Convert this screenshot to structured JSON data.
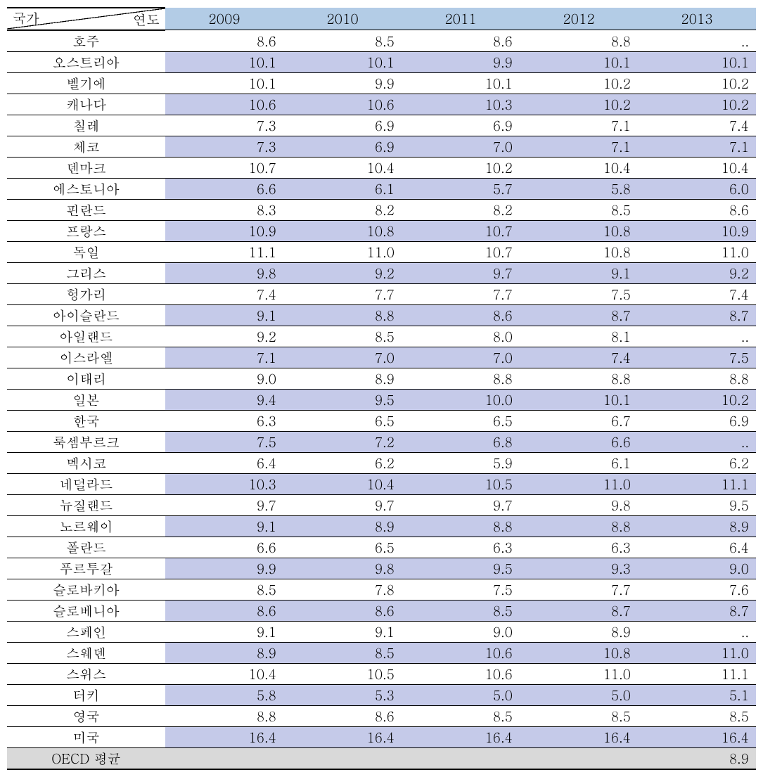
{
  "header": {
    "corner_top": "연도",
    "corner_bottom": "국가",
    "years": [
      "2009",
      "2010",
      "2011",
      "2012",
      "2013"
    ]
  },
  "colors": {
    "header_bg": "#b3cce6",
    "alt_row_bg": "#c5cae9",
    "avg_row_bg": "#d9d9d9",
    "border": "#000000",
    "background": "#ffffff"
  },
  "rows": [
    {
      "country": "호주",
      "values": [
        "8.6",
        "8.5",
        "8.6",
        "8.8",
        ".."
      ],
      "alt": false
    },
    {
      "country": "오스트리아",
      "values": [
        "10.1",
        "10.1",
        "9.9",
        "10.1",
        "10.1"
      ],
      "alt": true
    },
    {
      "country": "벨기에",
      "values": [
        "10.1",
        "9.9",
        "10.1",
        "10.2",
        "10.2"
      ],
      "alt": false
    },
    {
      "country": "캐나다",
      "values": [
        "10.6",
        "10.6",
        "10.3",
        "10.2",
        "10.2"
      ],
      "alt": true
    },
    {
      "country": "칠레",
      "values": [
        "7.3",
        "6.9",
        "6.9",
        "7.1",
        "7.4"
      ],
      "alt": false
    },
    {
      "country": "체코",
      "values": [
        "7.3",
        "6.9",
        "7.0",
        "7.1",
        "7.1"
      ],
      "alt": true
    },
    {
      "country": "덴마크",
      "values": [
        "10.7",
        "10.4",
        "10.2",
        "10.4",
        "10.4"
      ],
      "alt": false
    },
    {
      "country": "에스토니아",
      "values": [
        "6.6",
        "6.1",
        "5.7",
        "5.8",
        "6.0"
      ],
      "alt": true
    },
    {
      "country": "핀란드",
      "values": [
        "8.3",
        "8.2",
        "8.2",
        "8.5",
        "8.6"
      ],
      "alt": false
    },
    {
      "country": "프랑스",
      "values": [
        "10.9",
        "10.8",
        "10.7",
        "10.8",
        "10.9"
      ],
      "alt": true
    },
    {
      "country": "독일",
      "values": [
        "11.1",
        "11.0",
        "10.7",
        "10.8",
        "11.0"
      ],
      "alt": false
    },
    {
      "country": "그리스",
      "values": [
        "9.8",
        "9.2",
        "9.7",
        "9.1",
        "9.2"
      ],
      "alt": true
    },
    {
      "country": "헝가리",
      "values": [
        "7.4",
        "7.7",
        "7.7",
        "7.5",
        "7.4"
      ],
      "alt": false
    },
    {
      "country": "아이슬란드",
      "values": [
        "9.1",
        "8.8",
        "8.6",
        "8.7",
        "8.7"
      ],
      "alt": true
    },
    {
      "country": "아일랜드",
      "values": [
        "9.2",
        "8.5",
        "8.0",
        "8.1",
        ".."
      ],
      "alt": false
    },
    {
      "country": "이스라엘",
      "values": [
        "7.1",
        "7.0",
        "7.0",
        "7.4",
        "7.5"
      ],
      "alt": true
    },
    {
      "country": "이태리",
      "values": [
        "9.0",
        "8.9",
        "8.8",
        "8.8",
        "8.8"
      ],
      "alt": false
    },
    {
      "country": "일본",
      "values": [
        "9.4",
        "9.5",
        "10.0",
        "10.1",
        "10.2"
      ],
      "alt": true
    },
    {
      "country": "한국",
      "values": [
        "6.3",
        "6.5",
        "6.5",
        "6.7",
        "6.9"
      ],
      "alt": false
    },
    {
      "country": "룩셈부르크",
      "values": [
        "7.5",
        "7.2",
        "6.8",
        "6.6",
        ".."
      ],
      "alt": true
    },
    {
      "country": "멕시코",
      "values": [
        "6.4",
        "6.2",
        "5.9",
        "6.1",
        "6.2"
      ],
      "alt": false
    },
    {
      "country": "네덜라드",
      "values": [
        "10.3",
        "10.4",
        "10.5",
        "11.0",
        "11.1"
      ],
      "alt": true
    },
    {
      "country": "뉴질랜드",
      "values": [
        "9.7",
        "9.7",
        "9.7",
        "9.8",
        "9.5"
      ],
      "alt": false
    },
    {
      "country": "노르웨이",
      "values": [
        "9.1",
        "8.9",
        "8.8",
        "8.8",
        "8.9"
      ],
      "alt": true
    },
    {
      "country": "폴란드",
      "values": [
        "6.6",
        "6.5",
        "6.3",
        "6.3",
        "6.4"
      ],
      "alt": false
    },
    {
      "country": "푸르투갈",
      "values": [
        "9.9",
        "9.8",
        "9.5",
        "9.3",
        "9.0"
      ],
      "alt": true
    },
    {
      "country": "슬로바키아",
      "values": [
        "8.5",
        "7.8",
        "7.5",
        "7.7",
        "7.6"
      ],
      "alt": false
    },
    {
      "country": "슬로베니아",
      "values": [
        "8.6",
        "8.6",
        "8.5",
        "8.7",
        "8.7"
      ],
      "alt": true
    },
    {
      "country": "스페인",
      "values": [
        "9.1",
        "9.1",
        "9.0",
        "8.9",
        ".."
      ],
      "alt": false
    },
    {
      "country": "스웨덴",
      "values": [
        "8.9",
        "8.5",
        "10.6",
        "10.8",
        "11.0"
      ],
      "alt": true
    },
    {
      "country": "스위스",
      "values": [
        "10.4",
        "10.5",
        "10.6",
        "11.0",
        "11.1"
      ],
      "alt": false
    },
    {
      "country": "터키",
      "values": [
        "5.8",
        "5.3",
        "5.0",
        "5.0",
        "5.1"
      ],
      "alt": true
    },
    {
      "country": "영국",
      "values": [
        "8.8",
        "8.6",
        "8.5",
        "8.5",
        "8.5"
      ],
      "alt": false
    },
    {
      "country": "미국",
      "values": [
        "16.4",
        "16.4",
        "16.4",
        "16.4",
        "16.4"
      ],
      "alt": true
    }
  ],
  "average": {
    "label": "OECD 평균",
    "values": [
      "",
      "",
      "",
      "",
      "8.9"
    ]
  }
}
